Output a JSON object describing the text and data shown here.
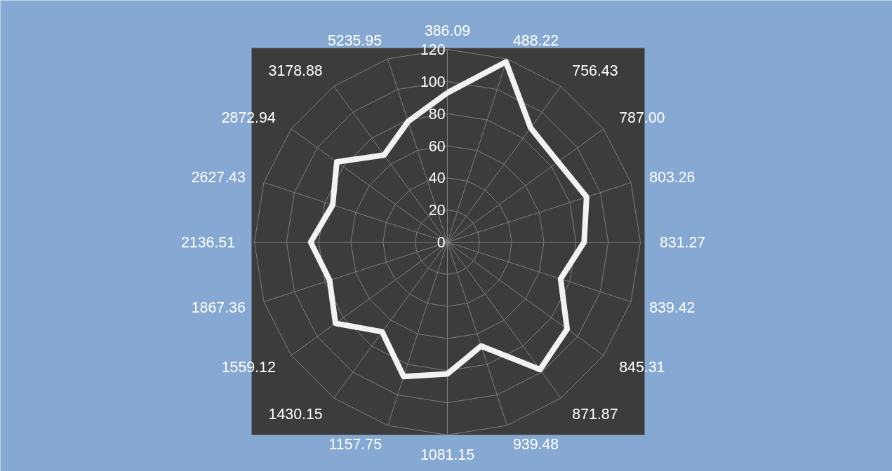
{
  "chart_data": {
    "type": "radar",
    "categories": [
      "386.09",
      "488.22",
      "756.43",
      "787.00",
      "803.26",
      "831.27",
      "839.42",
      "845.31",
      "871.87",
      "939.48",
      "1081.15",
      "1157.75",
      "1430.15",
      "1559.12",
      "1867.36",
      "2136.51",
      "2627.43",
      "2872.94",
      "3178.88",
      "5235.95"
    ],
    "series": [
      {
        "color": "#f2f2f2",
        "values": [
          93,
          118,
          88,
          85,
          91,
          85,
          74,
          92,
          98,
          68,
          82,
          88,
          69,
          86,
          77,
          85,
          75,
          85,
          67,
          79
        ]
      }
    ],
    "ylim": [
      0,
      120
    ],
    "yticks": [
      0,
      20,
      40,
      60,
      80,
      100,
      120
    ],
    "grid": true
  }
}
